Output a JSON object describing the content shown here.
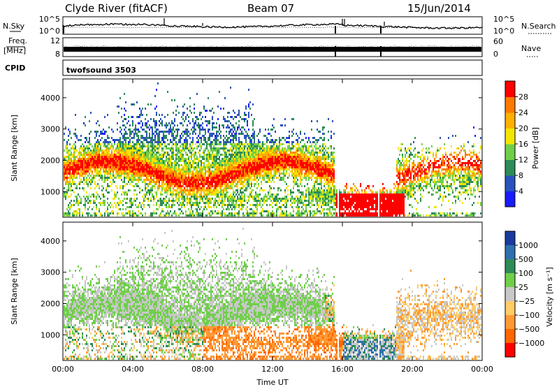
{
  "header": {
    "station": "Clyde River (fitACF)",
    "beam": "Beam 07",
    "date": "15/Jun/2014"
  },
  "strips": {
    "nsky_label": "N.Sky",
    "nsearch_label": "N.Search",
    "freq_label": "Freq.",
    "freq_unit": "[MHz]",
    "nave_label": "Nave",
    "cpid_label": "CPID",
    "cpid_value": "twofsound 3503",
    "noise_ticks_left": [
      "10^5",
      "10^0"
    ],
    "noise_ticks_right": [
      "10^5",
      "10^0"
    ],
    "freq_ticks_left": [
      "12",
      "8"
    ],
    "nave_ticks_right": [
      "60",
      "0"
    ]
  },
  "chart_data": [
    {
      "type": "heatmap",
      "name": "power",
      "ylabel": "Slant Range [km]",
      "xlabel": "",
      "x_ticks": [
        "00:00",
        "04:00",
        "08:00",
        "12:00",
        "16:00",
        "20:00",
        "00:00"
      ],
      "x_range_hours": [
        0,
        24
      ],
      "y_range_km": [
        180,
        4600
      ],
      "y_ticks": [
        "1000",
        "2000",
        "3000",
        "4000"
      ],
      "y_tick_values": [
        1000,
        2000,
        3000,
        4000
      ],
      "colorbar": {
        "label": "Power [dB]",
        "tick_labels": [
          "4",
          "8",
          "12",
          "16",
          "20",
          "24",
          "28"
        ],
        "colors": [
          "#1a1aff",
          "#2a52be",
          "#2e8b57",
          "#6fcf4a",
          "#f2e600",
          "#ffb000",
          "#ff7a00",
          "#ff0000"
        ]
      }
    },
    {
      "type": "heatmap",
      "name": "velocity",
      "ylabel": "Slant Range [km]",
      "xlabel": "Time UT",
      "x_ticks": [
        "00:00",
        "04:00",
        "08:00",
        "12:00",
        "16:00",
        "20:00",
        "00:00"
      ],
      "x_range_hours": [
        0,
        24
      ],
      "y_range_km": [
        180,
        4600
      ],
      "y_ticks": [
        "1000",
        "2000",
        "3000",
        "4000"
      ],
      "y_tick_values": [
        1000,
        2000,
        3000,
        4000
      ],
      "colorbar": {
        "label": "Velocity [m s⁻¹]",
        "tick_labels": [
          "1000",
          "500",
          "100",
          "25",
          "−25",
          "−100",
          "−500",
          "−1000"
        ],
        "colors": [
          "#1a3aa0",
          "#2e6fb0",
          "#2e8b57",
          "#6fcf4a",
          "#c8c8c8",
          "#ffcc66",
          "#ff9933",
          "#ff6600",
          "#ff0000"
        ]
      }
    }
  ]
}
